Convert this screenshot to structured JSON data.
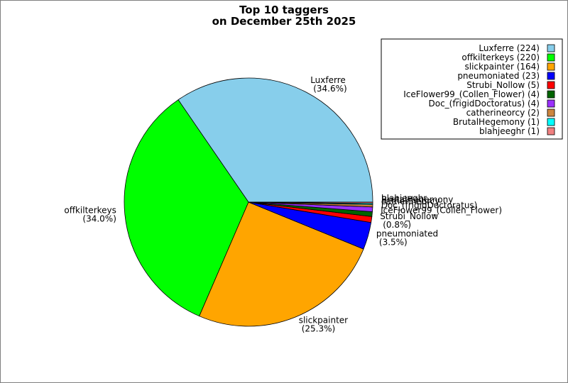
{
  "chart_data": {
    "type": "pie",
    "title": [
      "Top 10 taggers",
      "on December 25th 2025"
    ],
    "legend_position": "top-right",
    "slices": [
      {
        "name": "Luxferre",
        "value": 224,
        "color": "#87ceeb",
        "legend": "Luxferre (224)",
        "percent_label": "(34.6%)"
      },
      {
        "name": "offkilterkeys",
        "value": 220,
        "color": "#00ff00",
        "legend": "offkilterkeys (220)",
        "percent_label": "(34.0%)"
      },
      {
        "name": "slickpainter",
        "value": 164,
        "color": "#ffa500",
        "legend": "slickpainter (164)",
        "percent_label": "(25.3%)"
      },
      {
        "name": "pneumoniated",
        "value": 23,
        "color": "#0000ff",
        "legend": "pneumoniated (23)",
        "percent_label": "(3.5%)"
      },
      {
        "name": "Strubi_Nollow",
        "value": 5,
        "color": "#ff0000",
        "legend": "Strubi_Nollow (5)",
        "percent_label": "(0.8%)"
      },
      {
        "name": "IceFlower99_(Collen_Flower)",
        "value": 4,
        "color": "#006400",
        "legend": "IceFlower99_(Collen_Flower) (4)",
        "percent_label": "(0.6%)"
      },
      {
        "name": "Doc_(frigidDoctoratus)",
        "value": 4,
        "color": "#9b30ff",
        "legend": "Doc_(frigidDoctoratus) (4)",
        "percent_label": "(0.6%)"
      },
      {
        "name": "catherineorcy",
        "value": 2,
        "color": "#cd853f",
        "legend": "catherineorcy (2)",
        "percent_label": "(0.3%)"
      },
      {
        "name": "BrutalHegemony",
        "value": 1,
        "color": "#00ffff",
        "legend": "BrutalHegemony (1)",
        "percent_label": "(0.2%)"
      },
      {
        "name": "blahjeeghr",
        "value": 1,
        "color": "#f08080",
        "legend": "blahjeeghr (1)",
        "percent_label": "(0.2%)"
      }
    ]
  }
}
